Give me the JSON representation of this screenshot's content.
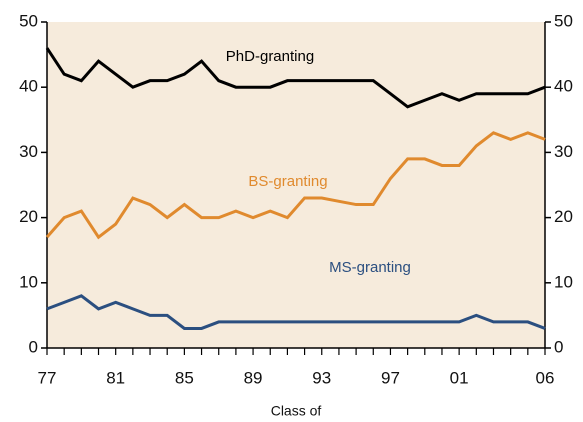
{
  "chart_data": {
    "type": "line",
    "x_label": "Class of",
    "categories": [
      "77",
      null,
      null,
      null,
      "81",
      null,
      null,
      null,
      "85",
      null,
      null,
      null,
      "89",
      null,
      null,
      null,
      "93",
      null,
      null,
      null,
      "97",
      null,
      null,
      null,
      "01",
      null,
      null,
      null,
      null,
      "06"
    ],
    "series": [
      {
        "name": "PhD-granting",
        "color": "#000000",
        "values": [
          46,
          42,
          41,
          44,
          42,
          40,
          41,
          41,
          42,
          44,
          41,
          40,
          40,
          40,
          41,
          41,
          41,
          41,
          41,
          41,
          39,
          37,
          38,
          39,
          38,
          39,
          39,
          39,
          39,
          40
        ]
      },
      {
        "name": "BS-granting",
        "color": "#e08a2e",
        "values": [
          17,
          20,
          21,
          17,
          19,
          23,
          22,
          20,
          22,
          20,
          20,
          21,
          20,
          21,
          20,
          23,
          23,
          22.5,
          22,
          22,
          26,
          29,
          29,
          28,
          28,
          31,
          33,
          32,
          33,
          32
        ]
      },
      {
        "name": "MS-granting",
        "color": "#2b4f80",
        "values": [
          6,
          7,
          8,
          6,
          7,
          6,
          5,
          5,
          3,
          3,
          4,
          4,
          4,
          4,
          4,
          4,
          4,
          4,
          4,
          4,
          4,
          4,
          4,
          4,
          4,
          5,
          4,
          4,
          4,
          3
        ]
      }
    ],
    "ylim": [
      0,
      50
    ],
    "yticks": [
      0,
      10,
      20,
      30,
      40,
      50
    ],
    "y2lim": [
      0,
      50
    ],
    "y2ticks": [
      0,
      10,
      20,
      30,
      40,
      50
    ]
  }
}
